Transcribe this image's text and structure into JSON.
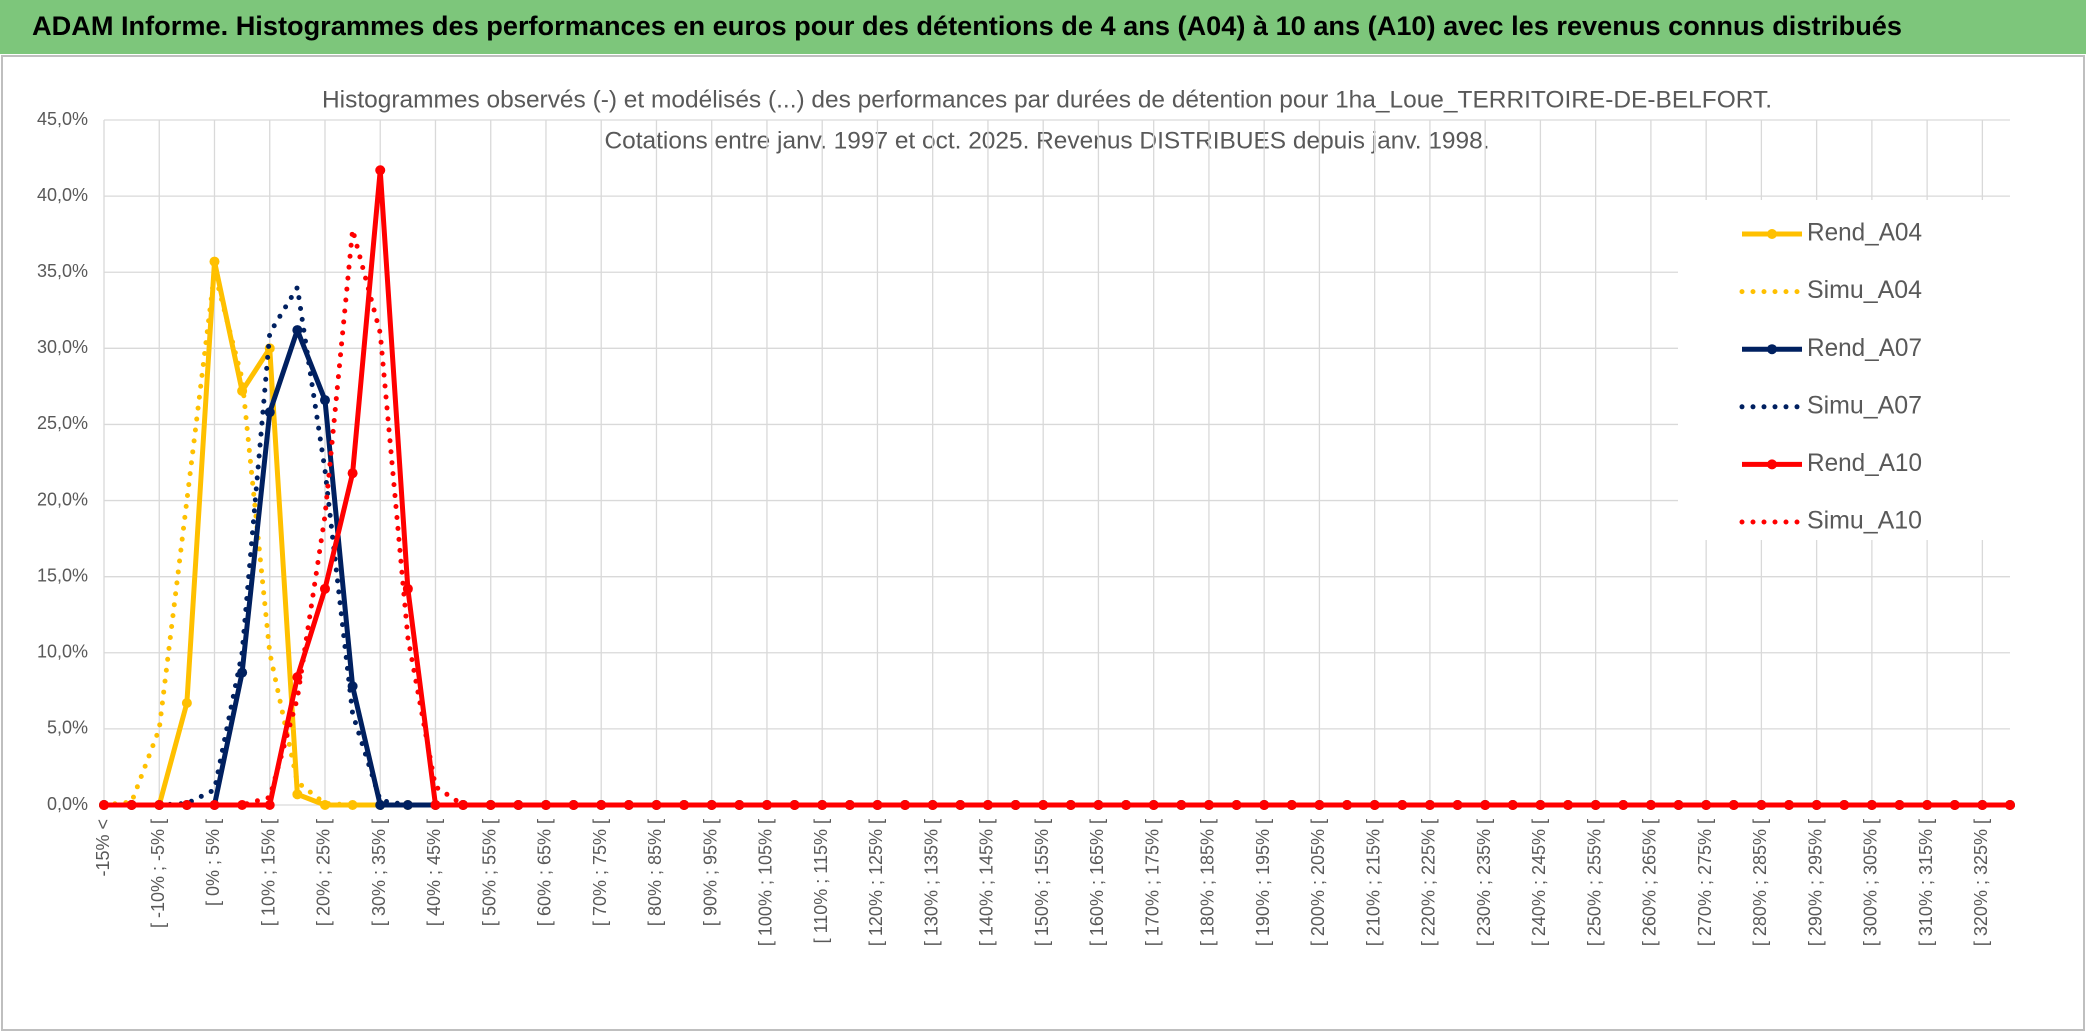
{
  "banner": "ADAM Informe. Histogrammes des performances en euros pour des détentions de 4 ans (A04) à 10 ans (A10) avec les revenus connus distribués",
  "chart_data": {
    "type": "line",
    "title": "Histogrammes observés (-) et modélisés (...) des performances par durées de détention pour 1ha_Loue_TERRITOIRE-DE-BELFORT.",
    "subtitle": "Cotations entre janv. 1997 et oct. 2025. Revenus DISTRIBUES depuis janv. 1998.",
    "categories": [
      "-15% <",
      null,
      "[ -10% ; -5% [",
      null,
      "[ 0% ; 5% [",
      null,
      "[ 10% ; 15% [",
      null,
      "[ 20% ; 25% [",
      null,
      "[ 30% ; 35% [",
      null,
      "[ 40% ; 45% [",
      null,
      "[ 50% ; 55% [",
      null,
      "[ 60% ; 65% [",
      null,
      "[ 70% ; 75% [",
      null,
      "[ 80% ; 85% [",
      null,
      "[ 90% ; 95% [",
      null,
      "[ 100% ; 105% [",
      null,
      "[ 110% ; 115% [",
      null,
      "[ 120% ; 125% [",
      null,
      "[ 130% ; 135% [",
      null,
      "[ 140% ; 145% [",
      null,
      "[ 150% ; 155% [",
      null,
      "[ 160% ; 165% [",
      null,
      "[ 170% ; 175% [",
      null,
      "[ 180% ; 185% [",
      null,
      "[ 190% ; 195% [",
      null,
      "[ 200% ; 205% [",
      null,
      "[ 210% ; 215% [",
      null,
      "[ 220% ; 225% [",
      null,
      "[ 230% ; 235% [",
      null,
      "[ 240% ; 245% [",
      null,
      "[ 250% ; 255% [",
      null,
      "[ 260% ; 265% [",
      null,
      "[ 270% ; 275% [",
      null,
      "[ 280% ; 285% [",
      null,
      "[ 290% ; 295% [",
      null,
      "[ 300% ; 305% [",
      null,
      "[ 310% ; 315% [",
      null,
      "[ 320% ; 325% [",
      null
    ],
    "series": [
      {
        "name": "Rend_A04",
        "color": "#FFC000",
        "dash": "solid",
        "markers": true,
        "values": [
          0,
          0,
          0,
          6.7,
          35.7,
          27.2,
          30,
          0.7,
          0,
          0,
          0,
          0,
          0,
          0,
          0,
          0,
          0,
          0,
          0,
          0,
          0,
          0,
          0,
          0,
          0,
          0,
          0,
          0,
          0,
          0,
          0,
          0,
          0,
          0,
          0,
          0,
          0,
          0,
          0,
          0,
          0,
          0,
          0,
          0,
          0,
          0,
          0,
          0,
          0,
          0,
          0,
          0,
          0,
          0,
          0,
          0,
          0,
          0,
          0,
          0,
          0,
          0,
          0,
          0,
          0,
          0,
          0,
          0,
          0,
          0
        ]
      },
      {
        "name": "Simu_A04",
        "color": "#FFC000",
        "dash": "dotted",
        "markers": false,
        "values": [
          0,
          0.2,
          5,
          20,
          35,
          28,
          10,
          1.5,
          0.1,
          0,
          0,
          0,
          0,
          0,
          0,
          0,
          0,
          0,
          0,
          0,
          0,
          0,
          0,
          0,
          0,
          0,
          0,
          0,
          0,
          0,
          0,
          0,
          0,
          0,
          0,
          0,
          0,
          0,
          0,
          0,
          0,
          0,
          0,
          0,
          0,
          0,
          0,
          0,
          0,
          0,
          0,
          0,
          0,
          0,
          0,
          0,
          0,
          0,
          0,
          0,
          0,
          0,
          0,
          0,
          0,
          0,
          0,
          0,
          0,
          0
        ]
      },
      {
        "name": "Rend_A07",
        "color": "#002060",
        "dash": "solid",
        "markers": true,
        "values": [
          0,
          0,
          0,
          0,
          0,
          8.7,
          25.8,
          31.2,
          26.6,
          7.8,
          0,
          0,
          0,
          0,
          0,
          0,
          0,
          0,
          0,
          0,
          0,
          0,
          0,
          0,
          0,
          0,
          0,
          0,
          0,
          0,
          0,
          0,
          0,
          0,
          0,
          0,
          0,
          0,
          0,
          0,
          0,
          0,
          0,
          0,
          0,
          0,
          0,
          0,
          0,
          0,
          0,
          0,
          0,
          0,
          0,
          0,
          0,
          0,
          0,
          0,
          0,
          0,
          0,
          0,
          0,
          0,
          0,
          0,
          0,
          0
        ]
      },
      {
        "name": "Simu_A07",
        "color": "#002060",
        "dash": "dotted",
        "markers": false,
        "values": [
          0,
          0,
          0,
          0.1,
          1,
          10,
          31,
          34,
          22,
          6,
          0.3,
          0,
          0,
          0,
          0,
          0,
          0,
          0,
          0,
          0,
          0,
          0,
          0,
          0,
          0,
          0,
          0,
          0,
          0,
          0,
          0,
          0,
          0,
          0,
          0,
          0,
          0,
          0,
          0,
          0,
          0,
          0,
          0,
          0,
          0,
          0,
          0,
          0,
          0,
          0,
          0,
          0,
          0,
          0,
          0,
          0,
          0,
          0,
          0,
          0,
          0,
          0,
          0,
          0,
          0,
          0,
          0,
          0,
          0,
          0
        ]
      },
      {
        "name": "Rend_A10",
        "color": "#FF0000",
        "dash": "solid",
        "markers": true,
        "values": [
          0,
          0,
          0,
          0,
          0,
          0,
          0,
          8.4,
          14.2,
          21.8,
          41.7,
          14.2,
          0,
          0,
          0,
          0,
          0,
          0,
          0,
          0,
          0,
          0,
          0,
          0,
          0,
          0,
          0,
          0,
          0,
          0,
          0,
          0,
          0,
          0,
          0,
          0,
          0,
          0,
          0,
          0,
          0,
          0,
          0,
          0,
          0,
          0,
          0,
          0,
          0,
          0,
          0,
          0,
          0,
          0,
          0,
          0,
          0,
          0,
          0,
          0,
          0,
          0,
          0,
          0,
          0,
          0,
          0,
          0,
          0,
          0
        ]
      },
      {
        "name": "Simu_A10",
        "color": "#FF0000",
        "dash": "dotted",
        "markers": false,
        "values": [
          0,
          0,
          0,
          0,
          0,
          0,
          0.5,
          7,
          19,
          37.8,
          31,
          11,
          1.2,
          0,
          0,
          0,
          0,
          0,
          0,
          0,
          0,
          0,
          0,
          0,
          0,
          0,
          0,
          0,
          0,
          0,
          0,
          0,
          0,
          0,
          0,
          0,
          0,
          0,
          0,
          0,
          0,
          0,
          0,
          0,
          0,
          0,
          0,
          0,
          0,
          0,
          0,
          0,
          0,
          0,
          0,
          0,
          0,
          0,
          0,
          0,
          0,
          0,
          0,
          0,
          0,
          0,
          0,
          0,
          0,
          0
        ]
      }
    ],
    "ylim": [
      0,
      45
    ],
    "yticks": [
      {
        "value": 0,
        "label": "0,0%"
      },
      {
        "value": 5,
        "label": "5,0%"
      },
      {
        "value": 10,
        "label": "10,0%"
      },
      {
        "value": 15,
        "label": "15,0%"
      },
      {
        "value": 20,
        "label": "20,0%"
      },
      {
        "value": 25,
        "label": "25,0%"
      },
      {
        "value": 30,
        "label": "30,0%"
      },
      {
        "value": 35,
        "label": "35,0%"
      },
      {
        "value": 40,
        "label": "40,0%"
      },
      {
        "value": 45,
        "label": "45,0%"
      }
    ],
    "grid": true,
    "legend": "right"
  }
}
